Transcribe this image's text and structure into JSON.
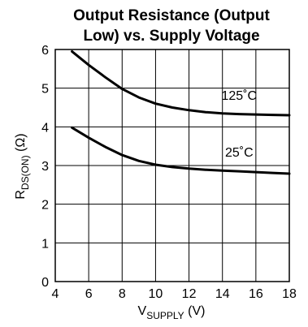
{
  "chart_data": {
    "type": "line",
    "title_line1": "Output Resistance (Output",
    "title_line2": "Low) vs. Supply Voltage",
    "xlabel": {
      "main": "V",
      "sub": "SUPPLY",
      "unit": " (V)"
    },
    "ylabel": {
      "main": "R",
      "sub": "DS(ON)",
      "unit": " (Ω)"
    },
    "xlim": [
      4,
      18
    ],
    "ylim": [
      0,
      6
    ],
    "xticks": [
      4,
      6,
      8,
      10,
      12,
      14,
      16,
      18
    ],
    "yticks": [
      0,
      1,
      2,
      3,
      4,
      5,
      6
    ],
    "grid": true,
    "series": [
      {
        "name": "125˚C",
        "x": [
          5,
          6,
          7,
          8,
          9,
          10,
          11,
          12,
          13,
          14,
          15,
          16,
          17,
          18
        ],
        "y": [
          5.95,
          5.6,
          5.28,
          4.98,
          4.76,
          4.6,
          4.5,
          4.43,
          4.38,
          4.35,
          4.33,
          4.32,
          4.31,
          4.3
        ]
      },
      {
        "name": "25˚C",
        "x": [
          5,
          6,
          7,
          8,
          9,
          10,
          11,
          12,
          13,
          14,
          15,
          16,
          17,
          18
        ],
        "y": [
          3.98,
          3.72,
          3.48,
          3.27,
          3.12,
          3.02,
          2.96,
          2.92,
          2.89,
          2.87,
          2.85,
          2.83,
          2.81,
          2.79
        ]
      }
    ]
  }
}
